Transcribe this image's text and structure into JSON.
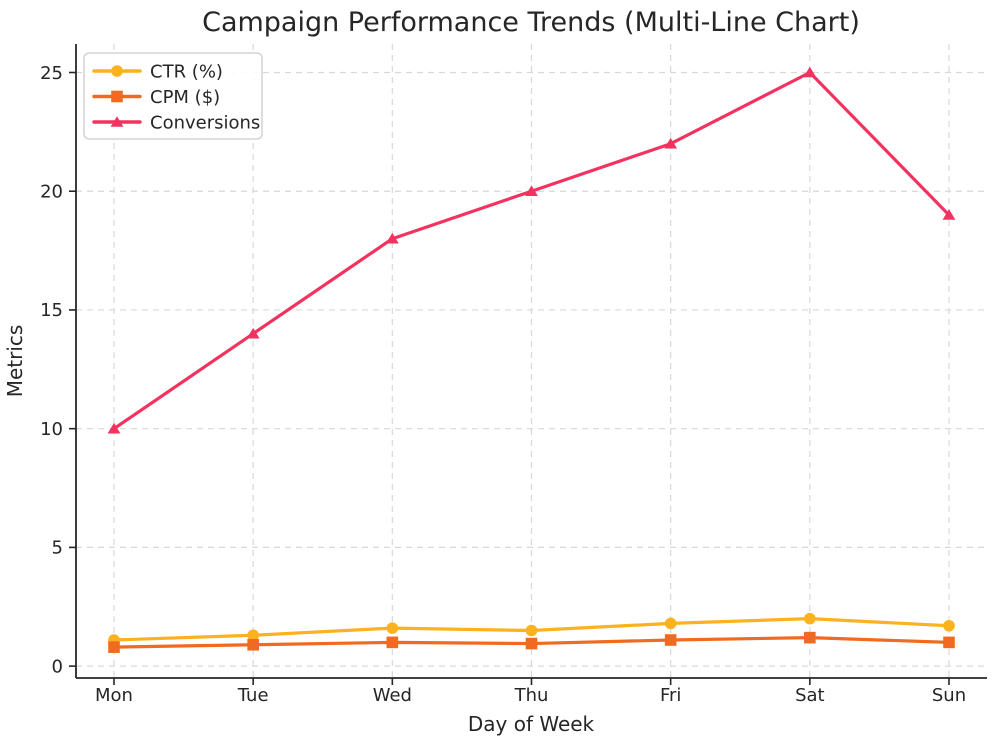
{
  "chart_data": {
    "type": "line",
    "title": "Campaign Performance Trends (Multi-Line Chart)",
    "xlabel": "Day of Week",
    "ylabel": "Metrics",
    "categories": [
      "Mon",
      "Tue",
      "Wed",
      "Thu",
      "Fri",
      "Sat",
      "Sun"
    ],
    "series": [
      {
        "name": "CTR (%)",
        "marker": "circle",
        "color": "#FCB11E",
        "values": [
          1.1,
          1.3,
          1.6,
          1.5,
          1.8,
          2.0,
          1.7
        ]
      },
      {
        "name": "CPM ($)",
        "marker": "square",
        "color": "#F06A21",
        "values": [
          0.8,
          0.9,
          1.0,
          0.95,
          1.1,
          1.2,
          1.0
        ]
      },
      {
        "name": "Conversions",
        "marker": "triangle",
        "color": "#F2335F",
        "values": [
          10,
          14,
          18,
          20,
          22,
          25,
          19
        ]
      }
    ],
    "yticks": [
      0,
      5,
      10,
      15,
      20,
      25
    ],
    "ylim": [
      -0.5,
      26.2
    ],
    "grid": true,
    "grid_style": "dashed",
    "legend_position": "upper-left"
  },
  "styles": {
    "background": "#ffffff",
    "grid_color": "#d8d8d8",
    "axis_color": "#262626",
    "text_color": "#262626",
    "legend_border": "#cccccc",
    "legend_fill": "#ffffff"
  }
}
